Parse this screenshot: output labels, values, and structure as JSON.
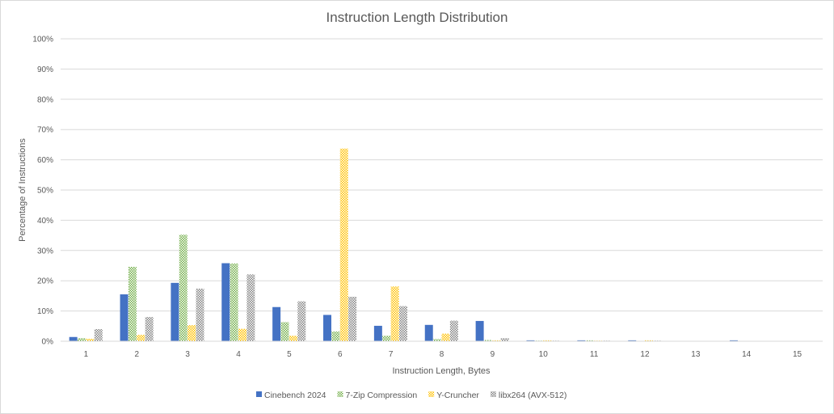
{
  "chart_data": {
    "type": "bar",
    "title": "Instruction Length Distribution",
    "xlabel": "Instruction Length, Bytes",
    "ylabel": "Percentage of Instructions",
    "categories": [
      "1",
      "2",
      "3",
      "4",
      "5",
      "6",
      "7",
      "8",
      "9",
      "10",
      "11",
      "12",
      "13",
      "14",
      "15"
    ],
    "ylim": [
      0,
      100
    ],
    "yticks": [
      "0%",
      "10%",
      "20%",
      "30%",
      "40%",
      "50%",
      "60%",
      "70%",
      "80%",
      "90%",
      "100%"
    ],
    "grid": true,
    "legend_position": "bottom",
    "series": [
      {
        "name": "Cinebench 2024",
        "color": "#4472c4",
        "pattern": "solid",
        "values": [
          1.4,
          15.5,
          19.3,
          25.8,
          11.3,
          8.7,
          5.1,
          5.4,
          6.7,
          0.3,
          0.3,
          0.3,
          0,
          0.3,
          0
        ]
      },
      {
        "name": "7-Zip Compression",
        "color": "#70ad47",
        "pattern": "dots",
        "values": [
          1.0,
          24.6,
          35.2,
          25.7,
          6.3,
          3.2,
          1.8,
          0.7,
          0.4,
          0.2,
          0.3,
          0,
          0,
          0,
          0
        ]
      },
      {
        "name": "Y-Cruncher",
        "color": "#ffc000",
        "pattern": "dots",
        "values": [
          0.8,
          2.1,
          5.3,
          4.1,
          1.8,
          63.7,
          18.1,
          2.5,
          0.3,
          0.3,
          0.2,
          0.3,
          0,
          0,
          0
        ]
      },
      {
        "name": "libx264 (AVX-512)",
        "color": "#808080",
        "pattern": "dots",
        "values": [
          4.0,
          8.0,
          17.4,
          22.1,
          13.2,
          14.7,
          11.6,
          6.8,
          1.0,
          0.2,
          0.2,
          0.2,
          0,
          0,
          0
        ]
      }
    ]
  }
}
